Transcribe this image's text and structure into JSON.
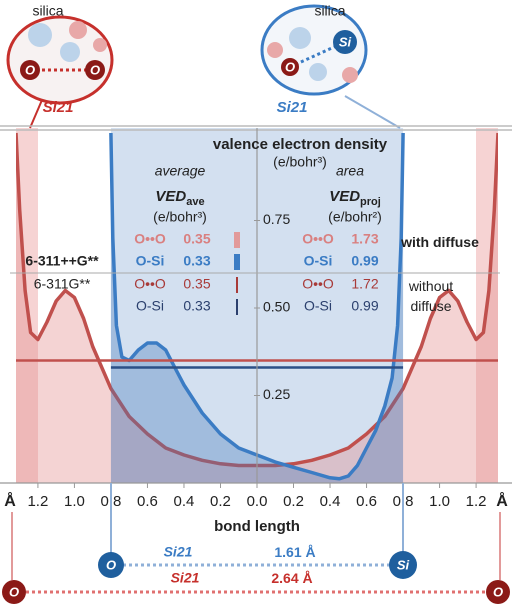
{
  "chart_data": {
    "type": "line",
    "title": "valence electron density",
    "y_unit": "(e/bohr³)",
    "xlabel": "bond length",
    "x_unit": "Å",
    "xlim": [
      -1.32,
      1.32
    ],
    "xticks": [
      {
        "value": -1.2,
        "label": "1.2"
      },
      {
        "value": -1.0,
        "label": "1.0"
      },
      {
        "value": -0.8,
        "label": "0.8"
      },
      {
        "value": -0.6,
        "label": "0.6"
      },
      {
        "value": -0.4,
        "label": "0.4"
      },
      {
        "value": -0.2,
        "label": "0.2"
      },
      {
        "value": 0,
        "label": "0.0"
      },
      0.2,
      0.4,
      0.6,
      0.8,
      {
        "value": 1.0,
        "label": "1.0"
      },
      1.2
    ],
    "ylim": [
      0,
      1.0
    ],
    "yticks": [
      0.25,
      {
        "value": 0.5,
        "label": "0.50"
      },
      0.75
    ],
    "series": [
      {
        "name": "O••O",
        "color": "#c0504d",
        "x": [
          -1.32,
          -1.3,
          -1.27,
          -1.24,
          -1.2,
          -1.15,
          -1.1,
          -1.05,
          -1.0,
          -0.95,
          -0.9,
          -0.8,
          -0.7,
          -0.6,
          -0.5,
          -0.4,
          -0.3,
          -0.2,
          -0.1,
          0,
          0.1,
          0.2,
          0.3,
          0.4,
          0.5,
          0.6,
          0.7,
          0.8,
          0.9,
          0.95,
          1.0,
          1.05,
          1.1,
          1.15,
          1.2,
          1.24,
          1.27,
          1.3,
          1.32
        ],
        "values": [
          1.0,
          0.78,
          0.55,
          0.43,
          0.41,
          0.46,
          0.52,
          0.55,
          0.53,
          0.47,
          0.39,
          0.27,
          0.19,
          0.14,
          0.1,
          0.08,
          0.065,
          0.055,
          0.05,
          0.05,
          0.05,
          0.055,
          0.065,
          0.08,
          0.1,
          0.14,
          0.19,
          0.27,
          0.39,
          0.47,
          0.53,
          0.55,
          0.52,
          0.46,
          0.41,
          0.43,
          0.55,
          0.78,
          1.0
        ]
      },
      {
        "name": "O-Si",
        "color": "#3b7cc4",
        "x": [
          -0.8,
          -0.79,
          -0.77,
          -0.74,
          -0.7,
          -0.65,
          -0.6,
          -0.55,
          -0.5,
          -0.45,
          -0.4,
          -0.3,
          -0.2,
          -0.1,
          0,
          0.1,
          0.2,
          0.3,
          0.4,
          0.45,
          0.5,
          0.55,
          0.6,
          0.65,
          0.7,
          0.74,
          0.77,
          0.79,
          0.8
        ],
        "values": [
          1.0,
          0.7,
          0.45,
          0.36,
          0.35,
          0.38,
          0.4,
          0.4,
          0.38,
          0.33,
          0.28,
          0.2,
          0.14,
          0.1,
          0.08,
          0.06,
          0.045,
          0.03,
          0.015,
          0.012,
          0.02,
          0.05,
          0.1,
          0.15,
          0.22,
          0.3,
          0.45,
          0.7,
          1.0
        ]
      }
    ]
  },
  "table": {
    "average": {
      "header": "average",
      "symbol": "VED",
      "sub": "ave",
      "unit": "(e/bohr³)"
    },
    "area": {
      "header": "area",
      "symbol": "VED",
      "sub": "proj",
      "unit": "(e/bohr²)"
    },
    "rows": [
      {
        "basis": "6-311++G**",
        "note": "with diffuse",
        "ave": [
          0.35,
          0.33
        ],
        "proj": [
          1.73,
          0.99
        ]
      },
      {
        "basis": "6-311G**",
        "note": "without diffuse",
        "ave": [
          0.35,
          0.33
        ],
        "proj": [
          1.72,
          0.99
        ]
      }
    ]
  },
  "structures": {
    "oo": {
      "caption": "silica",
      "atoms": [
        "O",
        "O"
      ],
      "label": "Si21",
      "distance": 2.64
    },
    "osi": {
      "caption": "silica",
      "atoms": [
        "O",
        "Si"
      ],
      "label": "Si21",
      "distance": 1.61
    },
    "unit": "Å"
  }
}
